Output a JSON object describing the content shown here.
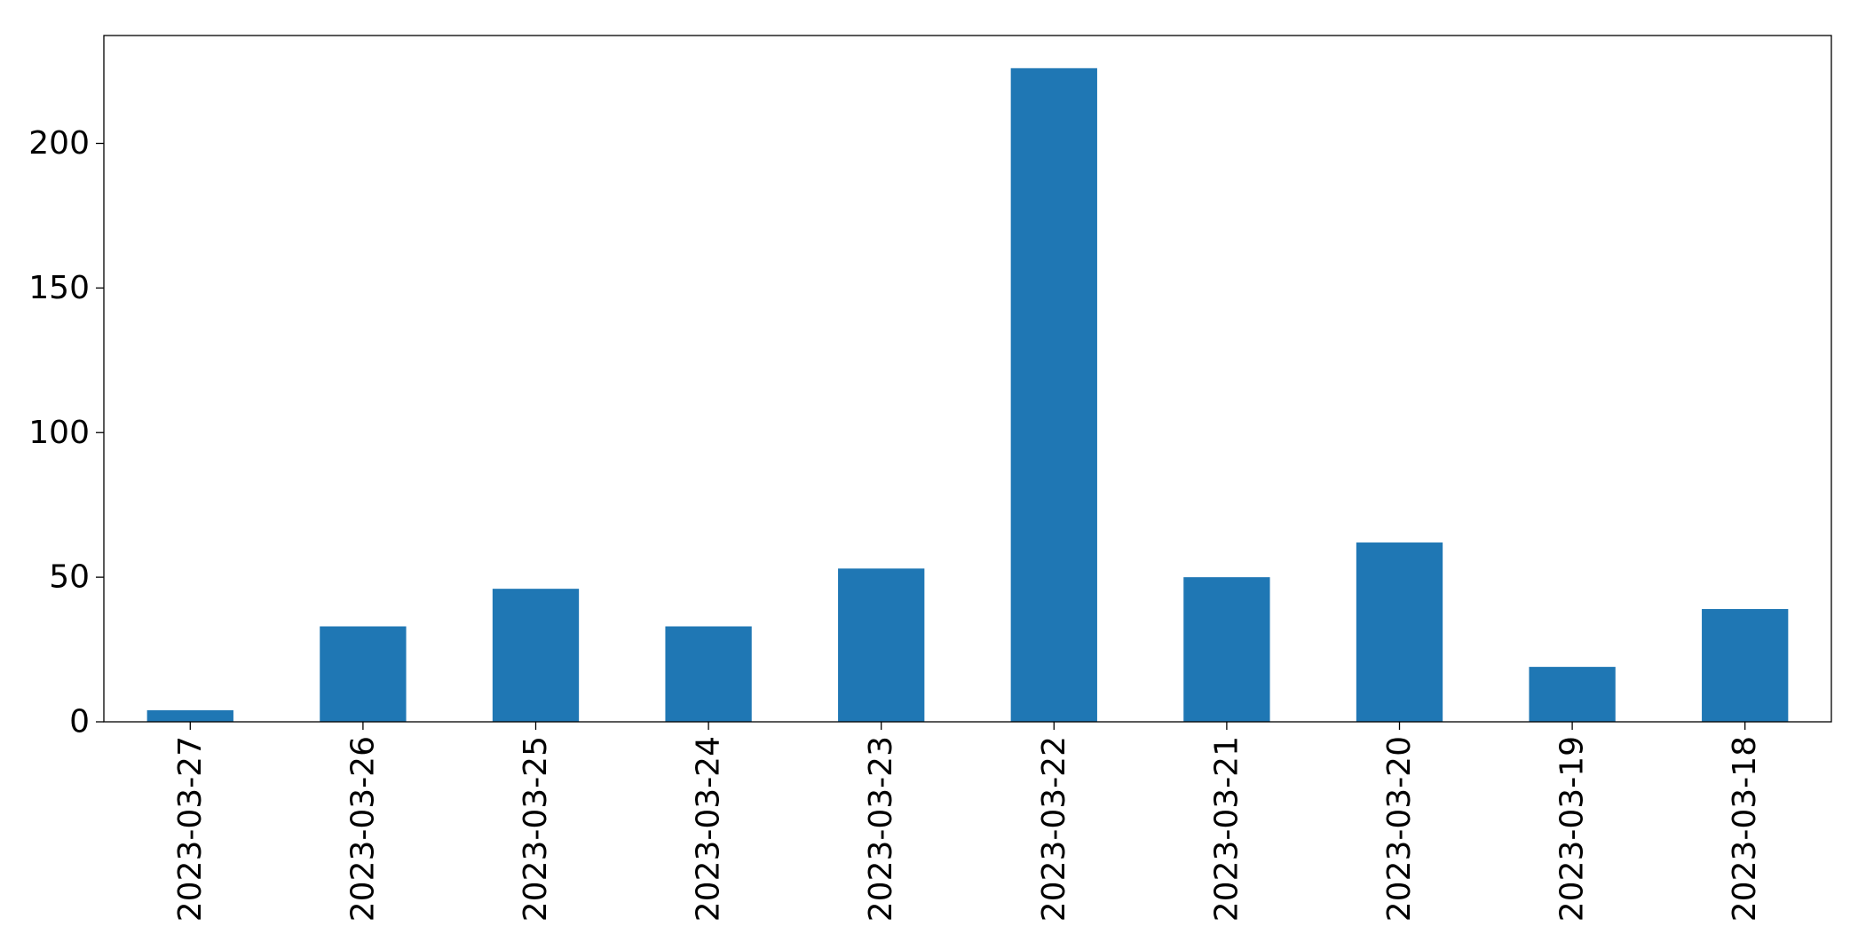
{
  "chart_data": {
    "type": "bar",
    "title": "",
    "xlabel": "",
    "ylabel": "",
    "categories": [
      "2023-03-27",
      "2023-03-26",
      "2023-03-25",
      "2023-03-24",
      "2023-03-23",
      "2023-03-22",
      "2023-03-21",
      "2023-03-20",
      "2023-03-19",
      "2023-03-18"
    ],
    "values": [
      4,
      33,
      46,
      33,
      53,
      226,
      50,
      62,
      19,
      39
    ],
    "ylim": [
      0,
      237.3
    ],
    "yticks": [
      0,
      50,
      100,
      150,
      200
    ],
    "bar_color": "#1f77b4",
    "grid": false,
    "legend": "none"
  }
}
